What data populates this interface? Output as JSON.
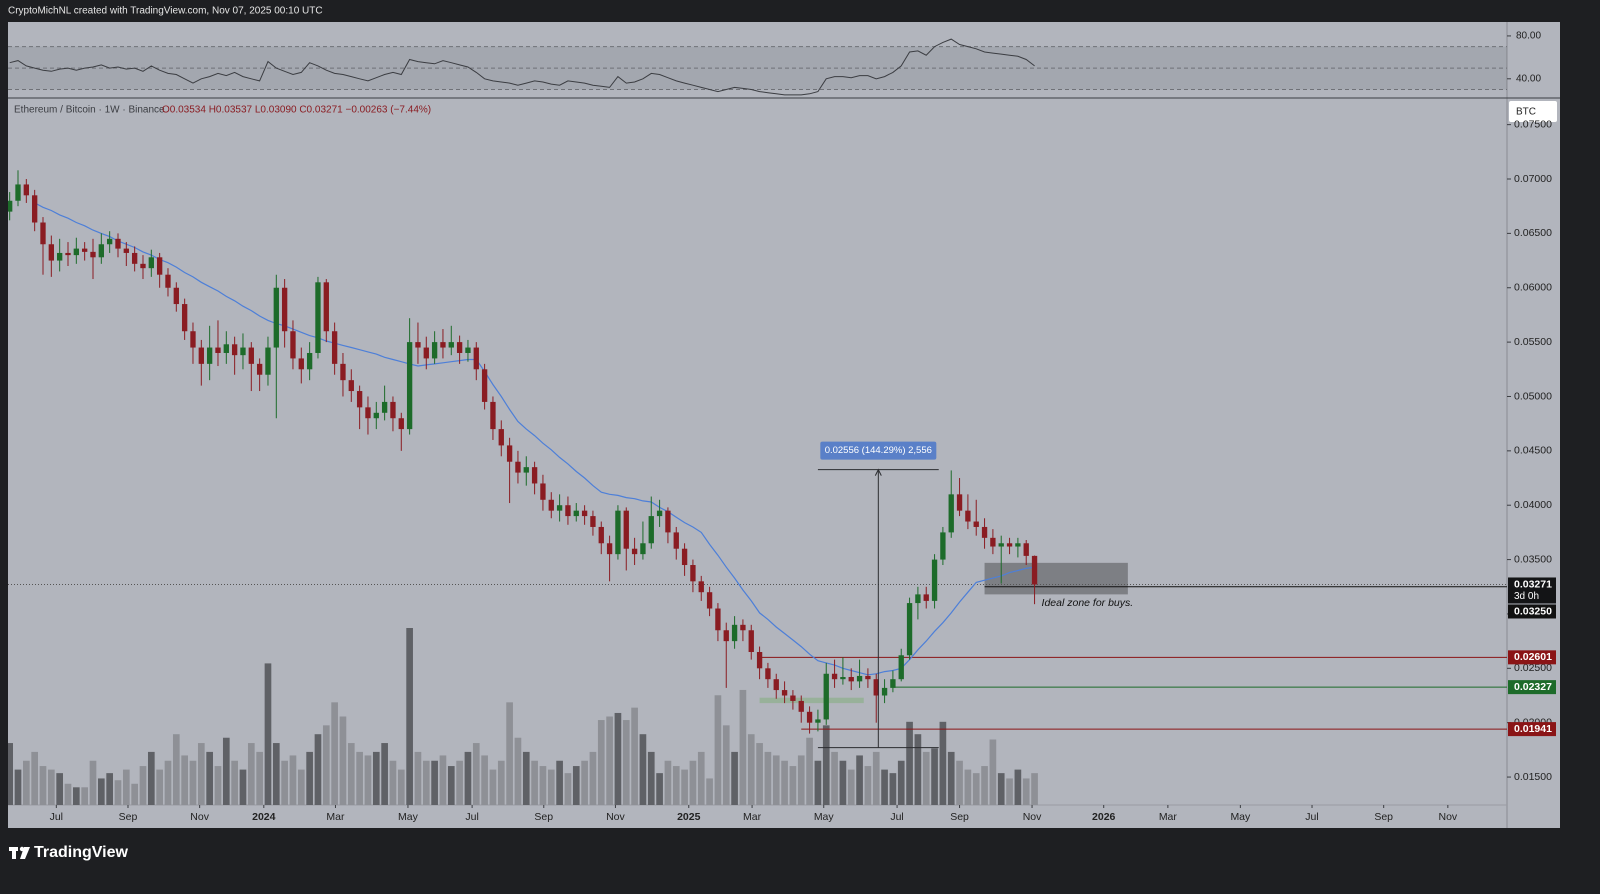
{
  "header": "CryptoMichNL created with TradingView.com, Nov 07, 2025 00:10 UTC",
  "footer_logo": "TradingView",
  "chart_data": {
    "type": "candlestick",
    "title": "Ethereum / Bitcoin · 1W · Binance",
    "ohlc_text": "O0.03534 H0.03537 L0.03090 C0.03271 −0.00263 (−7.44%)",
    "currency": "BTC",
    "up_color": "#1d6b2a",
    "down_color": "#8a1c22",
    "volume_up_color": "#5f6166",
    "volume_down_color": "#8e9096",
    "xlim": [
      -0.2,
      179.7
    ],
    "xticks": [
      {
        "value": 5.6,
        "label": "Jul"
      },
      {
        "value": 14.2,
        "label": "Sep"
      },
      {
        "value": 22.8,
        "label": "Nov"
      },
      {
        "value": 30.5,
        "label": "2024"
      },
      {
        "value": 39.1,
        "label": "Mar"
      },
      {
        "value": 47.8,
        "label": "May"
      },
      {
        "value": 55.5,
        "label": "Jul"
      },
      {
        "value": 64.1,
        "label": "Sep"
      },
      {
        "value": 72.7,
        "label": "Nov"
      },
      {
        "value": 81.5,
        "label": "2025"
      },
      {
        "value": 89.1,
        "label": "Mar"
      },
      {
        "value": 97.7,
        "label": "May"
      },
      {
        "value": 106.5,
        "label": "Jul"
      },
      {
        "value": 114,
        "label": "Sep"
      },
      {
        "value": 122.7,
        "label": "Nov"
      },
      {
        "value": 131.3,
        "label": "2026"
      },
      {
        "value": 139,
        "label": "Mar"
      },
      {
        "value": 147.7,
        "label": "May"
      },
      {
        "value": 156.3,
        "label": "Jul"
      },
      {
        "value": 164.9,
        "label": "Sep"
      },
      {
        "value": 172.6,
        "label": "Nov"
      }
    ],
    "ylim": [
      0.01243,
      0.07745
    ],
    "yticks": [
      {
        "value": 0.015,
        "label": "0.01500"
      },
      {
        "value": 0.02,
        "label": "0.02000"
      },
      {
        "value": 0.025,
        "label": "0.02500"
      },
      {
        "value": 0.03,
        "label": "0.03000"
      },
      {
        "value": 0.035,
        "label": "0.03500"
      },
      {
        "value": 0.04,
        "label": "0.04000"
      },
      {
        "value": 0.045,
        "label": "0.04500"
      },
      {
        "value": 0.05,
        "label": "0.05000"
      },
      {
        "value": 0.055,
        "label": "0.05500"
      },
      {
        "value": 0.06,
        "label": "0.06000"
      },
      {
        "value": 0.065,
        "label": "0.06500"
      },
      {
        "value": 0.07,
        "label": "0.07000"
      },
      {
        "value": 0.075,
        "label": "0.07500"
      }
    ],
    "open": [
      0.067,
      0.068,
      0.0695,
      0.0685,
      0.066,
      0.064,
      0.0625,
      0.0632,
      0.063,
      0.0636,
      0.0633,
      0.0628,
      0.064,
      0.0645,
      0.0636,
      0.0632,
      0.0622,
      0.0618,
      0.0628,
      0.0612,
      0.06,
      0.0585,
      0.056,
      0.0545,
      0.053,
      0.0545,
      0.054,
      0.0548,
      0.0538,
      0.0545,
      0.053,
      0.052,
      0.0545,
      0.06,
      0.056,
      0.0535,
      0.0525,
      0.054,
      0.0605,
      0.056,
      0.053,
      0.0515,
      0.0505,
      0.049,
      0.048,
      0.0485,
      0.0495,
      0.048,
      0.047,
      0.055,
      0.0545,
      0.0535,
      0.055,
      0.0545,
      0.055,
      0.054,
      0.0545,
      0.0525,
      0.0495,
      0.047,
      0.0455,
      0.044,
      0.043,
      0.0435,
      0.042,
      0.0405,
      0.0395,
      0.04,
      0.039,
      0.0395,
      0.039,
      0.038,
      0.0365,
      0.0355,
      0.0395,
      0.036,
      0.0355,
      0.0365,
      0.039,
      0.0395,
      0.0375,
      0.036,
      0.0345,
      0.033,
      0.032,
      0.0305,
      0.0285,
      0.0275,
      0.029,
      0.0285,
      0.0265,
      0.025,
      0.024,
      0.023,
      0.0225,
      0.022,
      0.021,
      0.02,
      0.0203,
      0.0245,
      0.024,
      0.0242,
      0.0238,
      0.0243,
      0.024,
      0.0225,
      0.0232,
      0.024,
      0.0262,
      0.031,
      0.0318,
      0.0312,
      0.035,
      0.0375,
      0.041,
      0.0395,
      0.0385,
      0.038,
      0.037,
      0.0362,
      0.0365,
      0.0362,
      0.0365,
      0.03534
    ],
    "high": [
      0.0688,
      0.0708,
      0.07,
      0.069,
      0.0665,
      0.0648,
      0.0645,
      0.0642,
      0.0646,
      0.0642,
      0.0645,
      0.065,
      0.0652,
      0.065,
      0.0642,
      0.0638,
      0.063,
      0.0635,
      0.0632,
      0.0618,
      0.0605,
      0.059,
      0.0568,
      0.0552,
      0.0565,
      0.057,
      0.056,
      0.0555,
      0.0558,
      0.055,
      0.0535,
      0.0555,
      0.0612,
      0.0608,
      0.057,
      0.0545,
      0.055,
      0.061,
      0.0608,
      0.0568,
      0.054,
      0.0525,
      0.051,
      0.05,
      0.0495,
      0.051,
      0.05,
      0.0485,
      0.0572,
      0.0568,
      0.0555,
      0.056,
      0.0562,
      0.0565,
      0.0556,
      0.0552,
      0.055,
      0.053,
      0.05,
      0.0478,
      0.0462,
      0.045,
      0.0445,
      0.044,
      0.0428,
      0.0412,
      0.041,
      0.0408,
      0.0402,
      0.04,
      0.0395,
      0.0385,
      0.0372,
      0.04,
      0.0398,
      0.037,
      0.0385,
      0.0408,
      0.0405,
      0.0398,
      0.038,
      0.0365,
      0.035,
      0.0335,
      0.0325,
      0.031,
      0.0292,
      0.0298,
      0.0295,
      0.029,
      0.027,
      0.0255,
      0.0245,
      0.0238,
      0.023,
      0.0225,
      0.0215,
      0.0212,
      0.0255,
      0.0258,
      0.026,
      0.025,
      0.0258,
      0.025,
      0.0245,
      0.024,
      0.0248,
      0.0268,
      0.0315,
      0.0325,
      0.0325,
      0.0355,
      0.038,
      0.0432,
      0.0425,
      0.041,
      0.0405,
      0.0388,
      0.0378,
      0.0372,
      0.037,
      0.037,
      0.0368,
      0.03537
    ],
    "low": [
      0.0662,
      0.0675,
      0.0678,
      0.0652,
      0.0612,
      0.061,
      0.0615,
      0.062,
      0.0622,
      0.0625,
      0.0608,
      0.0622,
      0.0632,
      0.0628,
      0.062,
      0.0615,
      0.0608,
      0.061,
      0.06,
      0.0592,
      0.0578,
      0.0552,
      0.053,
      0.051,
      0.0515,
      0.0528,
      0.053,
      0.052,
      0.0525,
      0.0505,
      0.0505,
      0.051,
      0.048,
      0.0545,
      0.0525,
      0.0512,
      0.0515,
      0.0535,
      0.055,
      0.052,
      0.05,
      0.0495,
      0.047,
      0.0465,
      0.047,
      0.0478,
      0.0468,
      0.045,
      0.0465,
      0.053,
      0.0525,
      0.053,
      0.0535,
      0.0538,
      0.053,
      0.0532,
      0.0515,
      0.0488,
      0.046,
      0.0445,
      0.0402,
      0.042,
      0.0418,
      0.041,
      0.0395,
      0.0388,
      0.0385,
      0.0382,
      0.0385,
      0.0382,
      0.0372,
      0.0355,
      0.033,
      0.035,
      0.034,
      0.0345,
      0.035,
      0.036,
      0.038,
      0.0365,
      0.035,
      0.0335,
      0.032,
      0.0312,
      0.0298,
      0.0275,
      0.0232,
      0.0268,
      0.0275,
      0.0258,
      0.024,
      0.0232,
      0.0222,
      0.0218,
      0.0212,
      0.02,
      0.019,
      0.0192,
      0.0198,
      0.0232,
      0.0235,
      0.023,
      0.0232,
      0.0232,
      0.02,
      0.0218,
      0.0228,
      0.0238,
      0.0258,
      0.0295,
      0.0305,
      0.0305,
      0.0345,
      0.037,
      0.039,
      0.0378,
      0.0372,
      0.036,
      0.0355,
      0.0328,
      0.0355,
      0.0352,
      0.0345,
      0.0309
    ],
    "close": [
      0.068,
      0.0695,
      0.0685,
      0.066,
      0.064,
      0.0625,
      0.0632,
      0.063,
      0.0636,
      0.0633,
      0.0628,
      0.064,
      0.0645,
      0.0636,
      0.0632,
      0.0622,
      0.0618,
      0.0628,
      0.0612,
      0.06,
      0.0585,
      0.056,
      0.0545,
      0.053,
      0.0545,
      0.054,
      0.0548,
      0.0538,
      0.0545,
      0.053,
      0.052,
      0.0545,
      0.06,
      0.056,
      0.0535,
      0.0525,
      0.054,
      0.0605,
      0.056,
      0.053,
      0.0515,
      0.0505,
      0.049,
      0.048,
      0.0485,
      0.0495,
      0.048,
      0.047,
      0.055,
      0.0545,
      0.0535,
      0.055,
      0.0545,
      0.055,
      0.054,
      0.0545,
      0.0525,
      0.0495,
      0.047,
      0.0455,
      0.044,
      0.043,
      0.0435,
      0.042,
      0.0405,
      0.0395,
      0.04,
      0.039,
      0.0395,
      0.039,
      0.038,
      0.0365,
      0.0355,
      0.0395,
      0.036,
      0.0355,
      0.0365,
      0.039,
      0.0395,
      0.0375,
      0.036,
      0.0345,
      0.033,
      0.032,
      0.0305,
      0.0285,
      0.0275,
      0.029,
      0.0285,
      0.0265,
      0.025,
      0.024,
      0.023,
      0.0225,
      0.022,
      0.021,
      0.02,
      0.0203,
      0.0245,
      0.024,
      0.0242,
      0.0238,
      0.0243,
      0.024,
      0.0225,
      0.0232,
      0.024,
      0.0262,
      0.031,
      0.0318,
      0.0312,
      0.035,
      0.0375,
      0.041,
      0.0395,
      0.0385,
      0.038,
      0.037,
      0.0362,
      0.0365,
      0.0362,
      0.0365,
      0.03534,
      0.03271
    ],
    "vlim": [
      0,
      100
    ],
    "volume": [
      35,
      20,
      25,
      30,
      22,
      20,
      18,
      12,
      10,
      10,
      25,
      15,
      18,
      14,
      20,
      12,
      22,
      30,
      20,
      25,
      40,
      28,
      25,
      35,
      30,
      22,
      38,
      25,
      20,
      35,
      30,
      80,
      35,
      25,
      28,
      20,
      30,
      40,
      45,
      58,
      50,
      35,
      30,
      28,
      30,
      35,
      25,
      20,
      100,
      30,
      25,
      25,
      28,
      22,
      25,
      30,
      35,
      28,
      20,
      25,
      58,
      38,
      30,
      25,
      22,
      20,
      25,
      18,
      22,
      25,
      30,
      48,
      50,
      52,
      48,
      55,
      40,
      30,
      18,
      25,
      22,
      20,
      25,
      30,
      15,
      62,
      45,
      30,
      65,
      40,
      35,
      30,
      28,
      25,
      22,
      28,
      38,
      25,
      45,
      30,
      25,
      20,
      28,
      22,
      30,
      20,
      18,
      25,
      47,
      40,
      30,
      32,
      47,
      30,
      25,
      20,
      18,
      22,
      37,
      18,
      15,
      20,
      15,
      18
    ],
    "ma": {
      "color": "#4d7fd8",
      "values": [
        null,
        null,
        null,
        0.0678,
        0.0674,
        0.0671,
        0.0667,
        0.0664,
        0.066,
        0.0657,
        0.0653,
        0.065,
        0.0647,
        0.0643,
        0.064,
        0.0637,
        0.0633,
        0.063,
        0.0626,
        0.0623,
        0.0619,
        0.0614,
        0.061,
        0.0605,
        0.0601,
        0.0597,
        0.0592,
        0.0588,
        0.0583,
        0.0579,
        0.0574,
        0.057,
        0.0567,
        0.0565,
        0.0562,
        0.0559,
        0.0556,
        0.0554,
        0.0551,
        0.0549,
        0.0547,
        0.0545,
        0.0543,
        0.0541,
        0.0539,
        0.0536,
        0.0534,
        0.0532,
        0.053,
        0.0528,
        0.0529,
        0.053,
        0.0531,
        0.0532,
        0.0533,
        0.0534,
        0.0534,
        0.0523,
        0.0511,
        0.05,
        0.0488,
        0.0477,
        0.047,
        0.0464,
        0.0457,
        0.0451,
        0.0444,
        0.0438,
        0.0431,
        0.0425,
        0.0418,
        0.0412,
        0.041,
        0.0409,
        0.0407,
        0.0406,
        0.0404,
        0.0403,
        0.0398,
        0.0394,
        0.0389,
        0.0384,
        0.038,
        0.0375,
        0.0364,
        0.0354,
        0.0343,
        0.0333,
        0.0322,
        0.0312,
        0.0301,
        0.0295,
        0.0288,
        0.0282,
        0.0276,
        0.027,
        0.0263,
        0.0257,
        0.0255,
        0.0253,
        0.025,
        0.0248,
        0.0246,
        0.0244,
        0.0245,
        0.0247,
        0.0248,
        0.025,
        0.0258,
        0.0267,
        0.0275,
        0.0284,
        0.0292,
        0.0301,
        0.0311,
        0.032,
        0.0329,
        0.0331,
        0.0333,
        0.0335,
        0.0338,
        0.034,
        0.0342,
        0.0343
      ]
    },
    "rsi": {
      "color": "#3b3d42",
      "ylim": [
        23,
        93
      ],
      "yticks": [
        {
          "value": 80,
          "label": "80.00"
        },
        {
          "value": 40,
          "label": "40.00"
        }
      ],
      "levels": [
        70,
        50,
        30
      ],
      "values": [
        55,
        57,
        52,
        50,
        48,
        47,
        49,
        50,
        48,
        50,
        51,
        53,
        50,
        51,
        49,
        50,
        47,
        52,
        48,
        45,
        44,
        40,
        36,
        40,
        42,
        45,
        43,
        46,
        42,
        40,
        38,
        56,
        50,
        47,
        44,
        46,
        55,
        52,
        48,
        45,
        44,
        42,
        40,
        38,
        41,
        44,
        46,
        44,
        58,
        56,
        55,
        54,
        57,
        55,
        53,
        51,
        46,
        40,
        38,
        37,
        36,
        34,
        36,
        38,
        37,
        35,
        34,
        38,
        37,
        36,
        34,
        33,
        32,
        42,
        36,
        37,
        40,
        45,
        44,
        41,
        38,
        36,
        34,
        32,
        30,
        28,
        30,
        32,
        31,
        30,
        28,
        27,
        26,
        25,
        25,
        25,
        26,
        28,
        40,
        42,
        42,
        41,
        43,
        43,
        40,
        42,
        46,
        52,
        65,
        66,
        62,
        70,
        74,
        77,
        72,
        70,
        68,
        65,
        64,
        63,
        62,
        61,
        58,
        52
      ]
    },
    "last_price": {
      "value": 0.03271,
      "label": "0.03271",
      "countdown": "3d 0h"
    },
    "price_lines": [
      {
        "value": 0.0325,
        "label": "0.03250",
        "from": 117,
        "color": "#111111"
      },
      {
        "value": 0.02601,
        "label": "0.02601",
        "from": 90,
        "color": "#8a1416"
      },
      {
        "value": 0.02327,
        "label": "0.02327",
        "from": 106,
        "color": "#1d6b2a"
      },
      {
        "value": 0.01941,
        "label": "0.01941",
        "from": 95,
        "color": "#8a1416"
      }
    ],
    "measure": {
      "x": [
        97,
        111.5
      ],
      "from": 0.01771,
      "to": 0.04327,
      "label": "0.02556 (144.29%) 2,556",
      "color": "#5a80c8"
    },
    "zones": [
      {
        "x": [
          117,
          134.2
        ],
        "y": [
          0.0318,
          0.0347
        ],
        "color": "#6b6d72",
        "label": "Ideal zone for buys."
      },
      {
        "x": [
          90,
          102.5
        ],
        "y": [
          0.0218,
          0.0223
        ],
        "color": "#8fb08f"
      }
    ]
  }
}
